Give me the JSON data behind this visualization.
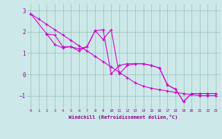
{
  "xlabel": "Windchill (Refroidissement éolien,°C)",
  "background_color": "#cce8e8",
  "line_color": "#cc00cc",
  "grid_color": "#99bbbb",
  "xlim": [
    -0.5,
    23.5
  ],
  "ylim": [
    -1.6,
    3.3
  ],
  "yticks": [
    -1,
    0,
    1,
    2,
    3
  ],
  "xticks": [
    0,
    1,
    2,
    3,
    4,
    5,
    6,
    7,
    8,
    9,
    10,
    11,
    12,
    13,
    14,
    15,
    16,
    17,
    18,
    19,
    20,
    21,
    22,
    23
  ],
  "line1_x": [
    0,
    1,
    2,
    3,
    4,
    5,
    6,
    7,
    8,
    9,
    10,
    11,
    12,
    13,
    14,
    15,
    16,
    17,
    18,
    19,
    20,
    21,
    22,
    23
  ],
  "line1_y": [
    2.85,
    2.6,
    2.35,
    2.1,
    1.85,
    1.6,
    1.35,
    1.1,
    0.85,
    0.6,
    0.35,
    0.1,
    -0.15,
    -0.4,
    -0.55,
    -0.65,
    -0.72,
    -0.78,
    -0.85,
    -0.9,
    -0.95,
    -1.0,
    -1.0,
    -1.0
  ],
  "line2_x": [
    2,
    3,
    4,
    5,
    6,
    7,
    8,
    9,
    10,
    11,
    12,
    13,
    14,
    15,
    16,
    17,
    18,
    19,
    20,
    21,
    22,
    23
  ],
  "line2_y": [
    1.9,
    1.85,
    1.3,
    1.3,
    1.1,
    1.3,
    2.05,
    1.65,
    2.1,
    0.02,
    0.42,
    0.5,
    0.5,
    0.42,
    0.3,
    -0.5,
    -0.7,
    -1.28,
    -0.9,
    -0.9,
    -0.9,
    -0.9
  ],
  "line3_x": [
    0,
    2,
    3,
    4,
    5,
    6,
    7,
    8,
    9,
    10,
    11,
    12,
    13,
    14,
    15,
    16,
    17,
    18,
    19,
    20,
    21,
    22,
    23
  ],
  "line3_y": [
    2.85,
    1.9,
    1.4,
    1.25,
    1.3,
    1.2,
    1.3,
    2.05,
    2.1,
    0.02,
    0.42,
    0.5,
    0.5,
    0.5,
    0.42,
    0.3,
    -0.5,
    -0.7,
    -1.28,
    -0.9,
    -0.9,
    -0.9,
    -0.9
  ]
}
